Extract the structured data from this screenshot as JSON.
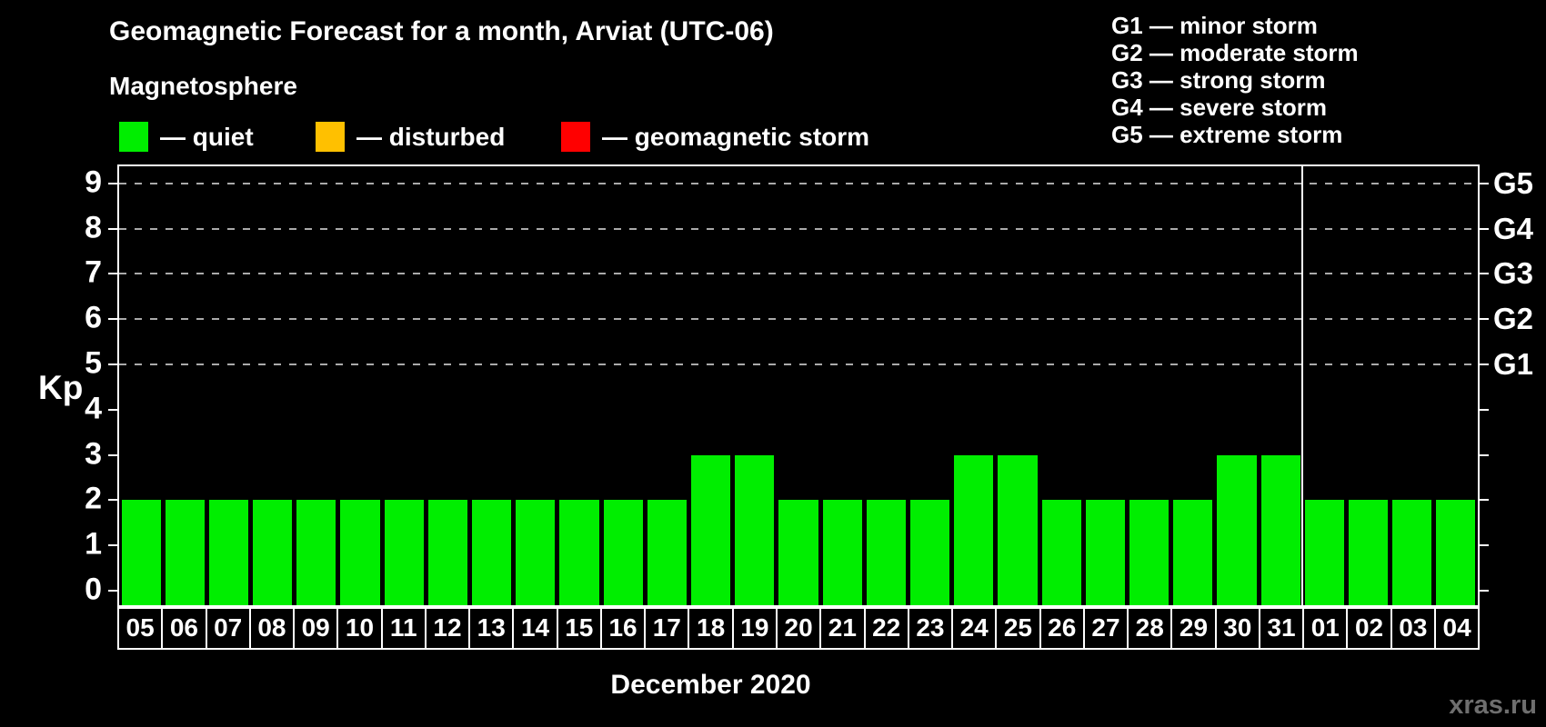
{
  "title": "Geomagnetic Forecast for a month, Arviat (UTC-06)",
  "subtitle": "Magnetosphere",
  "legend": {
    "items": [
      {
        "id": "quiet",
        "label": "— quiet",
        "color": "#00ee00",
        "x": 131
      },
      {
        "id": "disturbed",
        "label": "— disturbed",
        "color": "#ffc000",
        "x": 347
      },
      {
        "id": "geomagnetic-storm",
        "label": "— geomagnetic storm",
        "color": "#ff0000",
        "x": 617
      }
    ]
  },
  "storm_legend": [
    "G1 — minor storm",
    "G2 — moderate storm",
    "G3 — strong storm",
    "G4 — severe storm",
    "G5 — extreme storm"
  ],
  "y_axis": {
    "label": "Kp",
    "ticks": [
      0,
      1,
      2,
      3,
      4,
      5,
      6,
      7,
      8,
      9
    ]
  },
  "right_axis": {
    "labels": [
      {
        "text": "G1",
        "kp": 5
      },
      {
        "text": "G2",
        "kp": 6
      },
      {
        "text": "G3",
        "kp": 7
      },
      {
        "text": "G4",
        "kp": 8
      },
      {
        "text": "G5",
        "kp": 9
      }
    ]
  },
  "x_axis": {
    "month_label": "December 2020"
  },
  "watermark": "xras.ru",
  "chart_data": {
    "type": "bar",
    "title": "Geomagnetic Forecast for a month, Arviat (UTC-06)",
    "xlabel": "December 2020",
    "ylabel": "Kp",
    "ylim": [
      -0.4,
      9.4
    ],
    "grid": "dashed horizontal at Kp 5-9",
    "gridlines_at": [
      5,
      6,
      7,
      8,
      9
    ],
    "legend_position": "top",
    "categories": [
      "05",
      "06",
      "07",
      "08",
      "09",
      "10",
      "11",
      "12",
      "13",
      "14",
      "15",
      "16",
      "17",
      "18",
      "19",
      "20",
      "21",
      "22",
      "23",
      "24",
      "25",
      "26",
      "27",
      "28",
      "29",
      "30",
      "31",
      "01",
      "02",
      "03",
      "04"
    ],
    "values": [
      2,
      2,
      2,
      2,
      2,
      2,
      2,
      2,
      2,
      2,
      2,
      2,
      2,
      3,
      3,
      2,
      2,
      2,
      2,
      3,
      3,
      2,
      2,
      2,
      2,
      3,
      3,
      2,
      2,
      2,
      2
    ],
    "status_per_day": [
      "quiet",
      "quiet",
      "quiet",
      "quiet",
      "quiet",
      "quiet",
      "quiet",
      "quiet",
      "quiet",
      "quiet",
      "quiet",
      "quiet",
      "quiet",
      "quiet",
      "quiet",
      "quiet",
      "quiet",
      "quiet",
      "quiet",
      "quiet",
      "quiet",
      "quiet",
      "quiet",
      "quiet",
      "quiet",
      "quiet",
      "quiet",
      "quiet",
      "quiet",
      "quiet",
      "quiet"
    ],
    "bar_color": "#00ee00",
    "month_boundary_after_index": 26
  }
}
